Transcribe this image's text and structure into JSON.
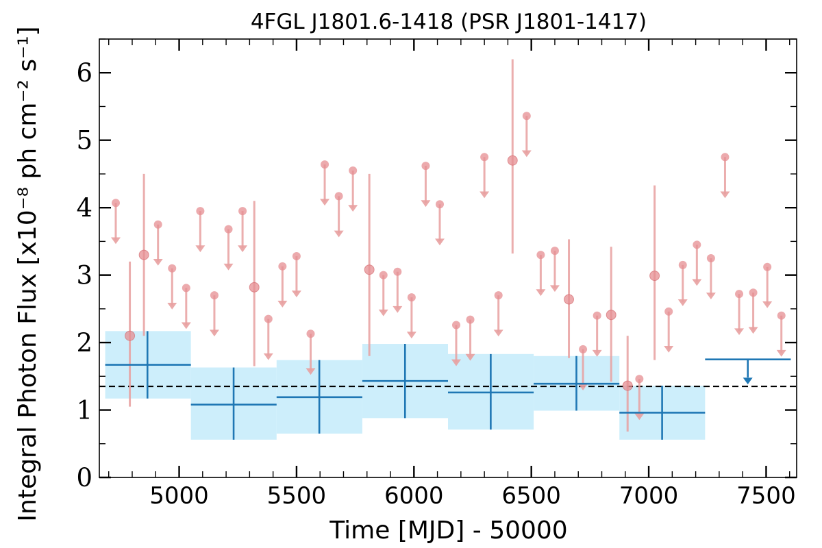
{
  "chart_data": {
    "type": "scatter",
    "title": "4FGL J1801.6-1418 (PSR J1801-1417)",
    "xlabel": "Time [MJD] - 50000",
    "ylabel": "Integral Photon Flux [x10⁻⁸ ph cm⁻² s⁻¹]",
    "xlim": [
      4660,
      7630
    ],
    "ylim": [
      0,
      6.5
    ],
    "x_ticks": [
      5000,
      5500,
      6000,
      6500,
      7000,
      7500
    ],
    "y_ticks": [
      0,
      1,
      2,
      3,
      4,
      5,
      6
    ],
    "grid": false,
    "reference_line": {
      "y": 1.35,
      "style": "dashed",
      "color": "#000000"
    },
    "colors": {
      "long_bins": "#1f77b4",
      "long_bins_band": "#cdeefb",
      "short_bins": "#e8a0a0",
      "short_points": "#e58e92"
    },
    "series": [
      {
        "binning": "long",
        "measurements": [
          {
            "x_start": 4685,
            "x_end": 5050,
            "x": 4865,
            "y": 1.67,
            "y_low": 1.17,
            "y_high": 2.17
          },
          {
            "x_start": 5050,
            "x_end": 5415,
            "x": 5232,
            "y": 1.08,
            "y_low": 0.56,
            "y_high": 1.63
          },
          {
            "x_start": 5415,
            "x_end": 5780,
            "x": 5597,
            "y": 1.19,
            "y_low": 0.65,
            "y_high": 1.74
          },
          {
            "x_start": 5780,
            "x_end": 6145,
            "x": 5962,
            "y": 1.43,
            "y_low": 0.88,
            "y_high": 1.98
          },
          {
            "x_start": 6145,
            "x_end": 6510,
            "x": 6327,
            "y": 1.26,
            "y_low": 0.71,
            "y_high": 1.83
          },
          {
            "x_start": 6510,
            "x_end": 6875,
            "x": 6692,
            "y": 1.39,
            "y_low": 0.99,
            "y_high": 1.8
          },
          {
            "x_start": 6875,
            "x_end": 7240,
            "x": 7057,
            "y": 0.96,
            "y_low": 0.56,
            "y_high": 1.36
          }
        ],
        "upper_limits": [
          {
            "x_start": 7240,
            "x_end": 7605,
            "x": 7422,
            "y": 1.75,
            "y_arrow": 1.38
          }
        ]
      },
      {
        "binning": "short",
        "measurements": [
          {
            "x": 4790,
            "y": 2.1,
            "y_low": 1.05,
            "y_high": 3.2
          },
          {
            "x": 4850,
            "y": 3.3,
            "y_low": 2.1,
            "y_high": 4.5
          },
          {
            "x": 5320,
            "y": 2.82,
            "y_low": 1.65,
            "y_high": 4.1
          },
          {
            "x": 5810,
            "y": 3.08,
            "y_low": 1.8,
            "y_high": 4.5
          },
          {
            "x": 6420,
            "y": 4.7,
            "y_low": 3.32,
            "y_high": 6.2
          },
          {
            "x": 6660,
            "y": 2.64,
            "y_low": 1.77,
            "y_high": 3.53
          },
          {
            "x": 6840,
            "y": 2.41,
            "y_low": 1.42,
            "y_high": 3.42
          },
          {
            "x": 6910,
            "y": 1.36,
            "y_low": 0.68,
            "y_high": 2.1
          },
          {
            "x": 7025,
            "y": 2.99,
            "y_low": 1.74,
            "y_high": 4.33
          }
        ],
        "upper_limits": [
          {
            "x": 4730,
            "y": 4.07
          },
          {
            "x": 4910,
            "y": 3.75
          },
          {
            "x": 4970,
            "y": 3.1
          },
          {
            "x": 5030,
            "y": 2.81
          },
          {
            "x": 5090,
            "y": 3.95
          },
          {
            "x": 5150,
            "y": 2.7
          },
          {
            "x": 5210,
            "y": 3.68
          },
          {
            "x": 5270,
            "y": 3.95
          },
          {
            "x": 5380,
            "y": 2.35
          },
          {
            "x": 5440,
            "y": 3.13
          },
          {
            "x": 5500,
            "y": 3.28
          },
          {
            "x": 5560,
            "y": 2.13
          },
          {
            "x": 5620,
            "y": 4.64
          },
          {
            "x": 5680,
            "y": 4.17
          },
          {
            "x": 5740,
            "y": 4.55
          },
          {
            "x": 5870,
            "y": 3.0
          },
          {
            "x": 5930,
            "y": 3.05
          },
          {
            "x": 5990,
            "y": 2.67
          },
          {
            "x": 6050,
            "y": 4.62
          },
          {
            "x": 6110,
            "y": 4.05
          },
          {
            "x": 6180,
            "y": 2.26
          },
          {
            "x": 6240,
            "y": 2.34
          },
          {
            "x": 6300,
            "y": 4.75
          },
          {
            "x": 6360,
            "y": 2.7
          },
          {
            "x": 6480,
            "y": 5.36
          },
          {
            "x": 6540,
            "y": 3.3
          },
          {
            "x": 6600,
            "y": 3.36
          },
          {
            "x": 6720,
            "y": 1.9
          },
          {
            "x": 6780,
            "y": 2.4
          },
          {
            "x": 6960,
            "y": 1.46
          },
          {
            "x": 7085,
            "y": 2.46
          },
          {
            "x": 7145,
            "y": 3.15
          },
          {
            "x": 7205,
            "y": 3.45
          },
          {
            "x": 7265,
            "y": 3.25
          },
          {
            "x": 7325,
            "y": 4.75
          },
          {
            "x": 7385,
            "y": 2.72
          },
          {
            "x": 7445,
            "y": 2.74
          },
          {
            "x": 7505,
            "y": 3.12
          },
          {
            "x": 7565,
            "y": 2.4
          }
        ]
      }
    ]
  }
}
